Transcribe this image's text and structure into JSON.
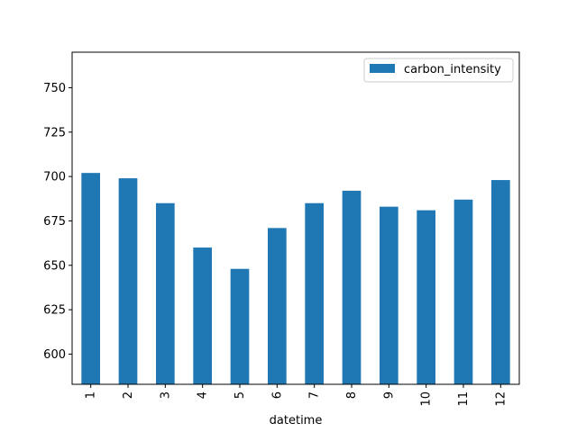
{
  "chart_data": {
    "type": "bar",
    "categories": [
      "1",
      "2",
      "3",
      "4",
      "5",
      "6",
      "7",
      "8",
      "9",
      "10",
      "11",
      "12"
    ],
    "series": [
      {
        "name": "carbon_intensity",
        "color": "#1f77b4",
        "values": [
          702,
          699,
          685,
          660,
          648,
          671,
          685,
          692,
          683,
          681,
          687,
          698
        ]
      }
    ],
    "title": "",
    "xlabel": "datetime",
    "ylabel": "",
    "ylim": [
      583,
      770
    ],
    "yticks": [
      600,
      625,
      650,
      675,
      700,
      725,
      750
    ],
    "grid": false,
    "legend": "top-right",
    "x_tick_rotation": "vertical"
  }
}
